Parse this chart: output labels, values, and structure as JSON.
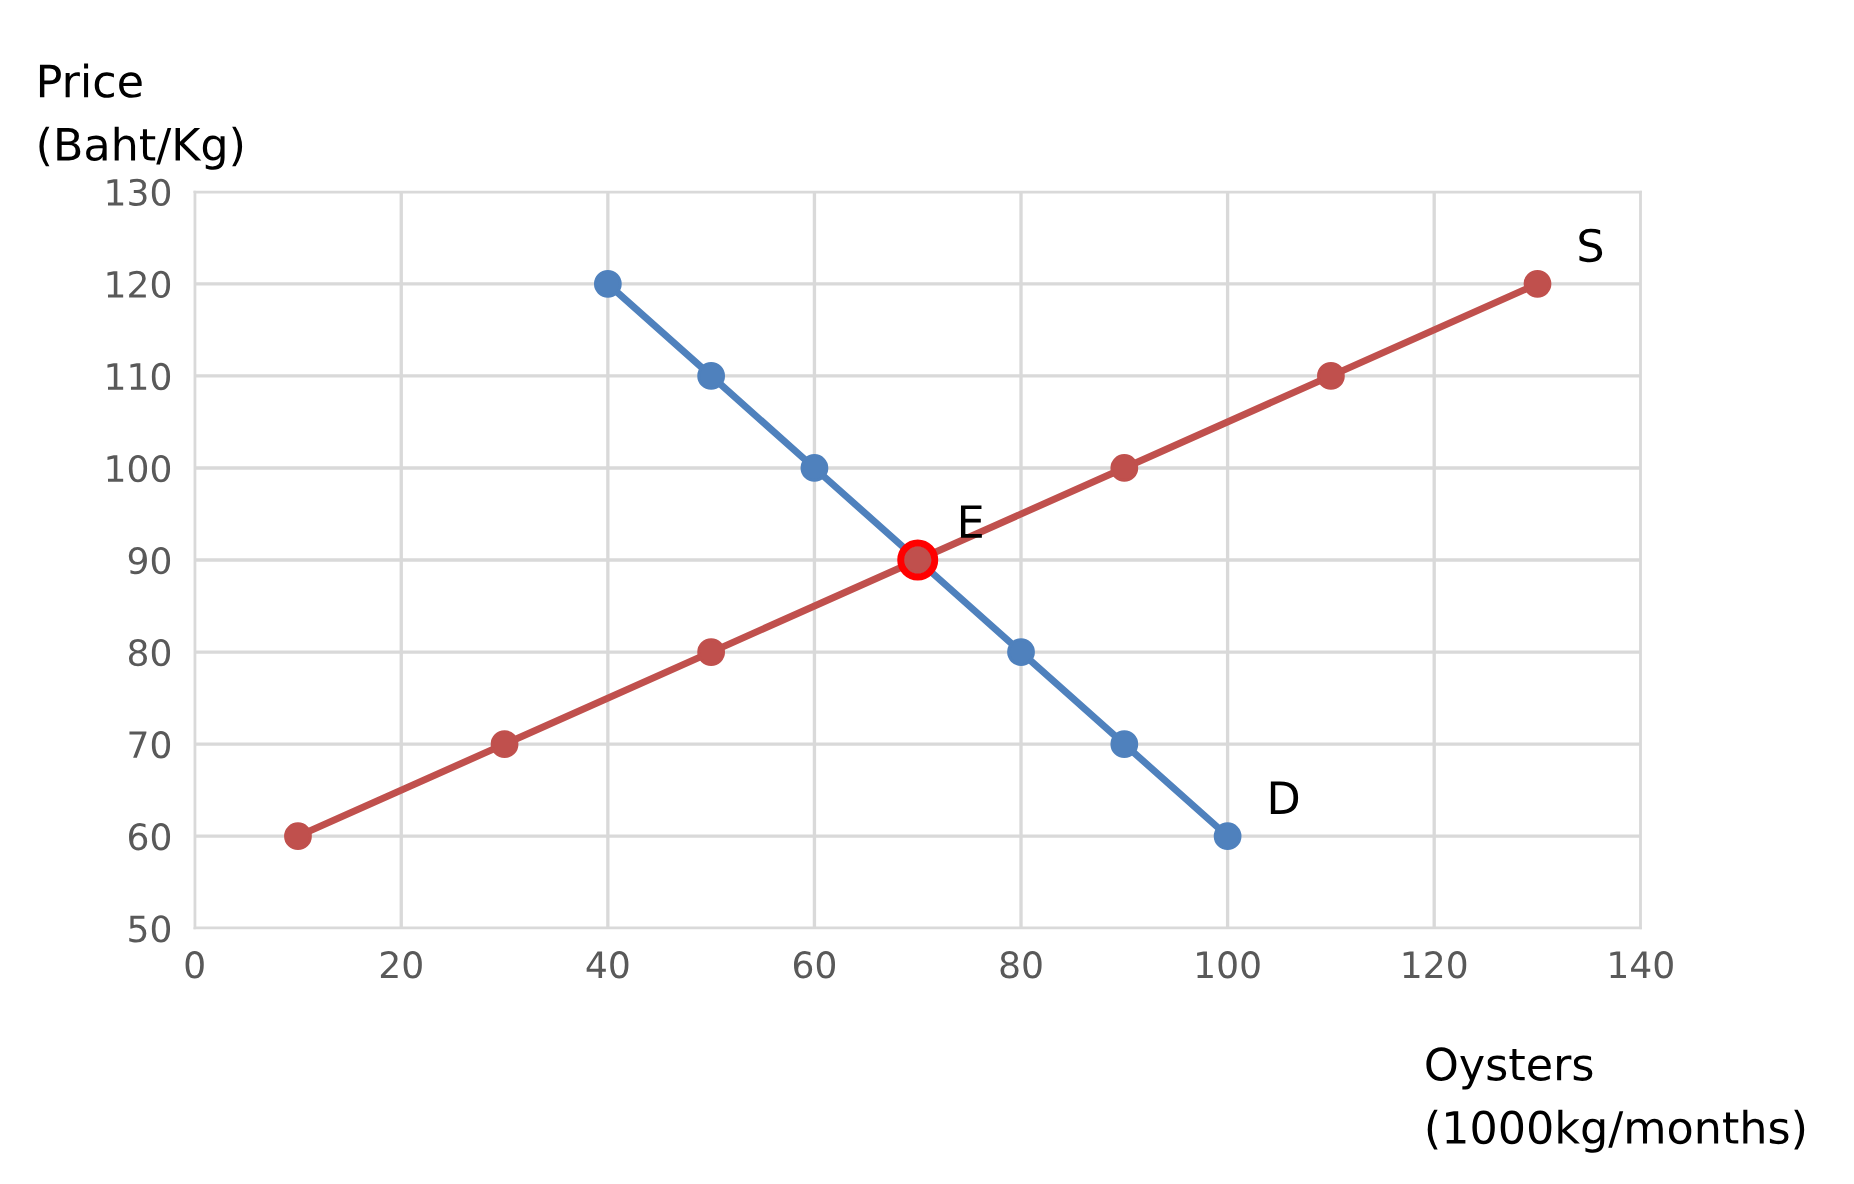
{
  "chart_data": {
    "type": "line",
    "xlabel": "Oysters\n(1000kg/months)",
    "ylabel": "Price\n(Baht/Kg)",
    "xlim": [
      0,
      140
    ],
    "xticks": [
      0,
      20,
      40,
      60,
      80,
      100,
      120,
      140
    ],
    "ylim": [
      50,
      130
    ],
    "yticks": [
      50,
      60,
      70,
      80,
      90,
      100,
      110,
      120,
      130
    ],
    "grid": true,
    "marker": "circle",
    "line_style": "solid",
    "series": [
      {
        "color": "#4f81bd",
        "x": [
          40,
          50,
          60,
          70,
          80,
          90,
          100
        ],
        "values": [
          120,
          110,
          100,
          90,
          80,
          70,
          60
        ]
      },
      {
        "color": "#c0504d",
        "x": [
          10,
          30,
          50,
          70,
          90,
          110,
          130
        ],
        "values": [
          60,
          70,
          80,
          90,
          100,
          110,
          120
        ]
      },
      {
        "type": "scatter",
        "color": "#ff0000",
        "x": [
          70
        ],
        "values": [
          90
        ]
      }
    ],
    "annotations": [
      {
        "text": "S",
        "x": 130,
        "y": 120
      },
      {
        "text": "D",
        "x": 100,
        "y": 60
      },
      {
        "text": "E",
        "x": 70,
        "y": 90
      }
    ]
  }
}
